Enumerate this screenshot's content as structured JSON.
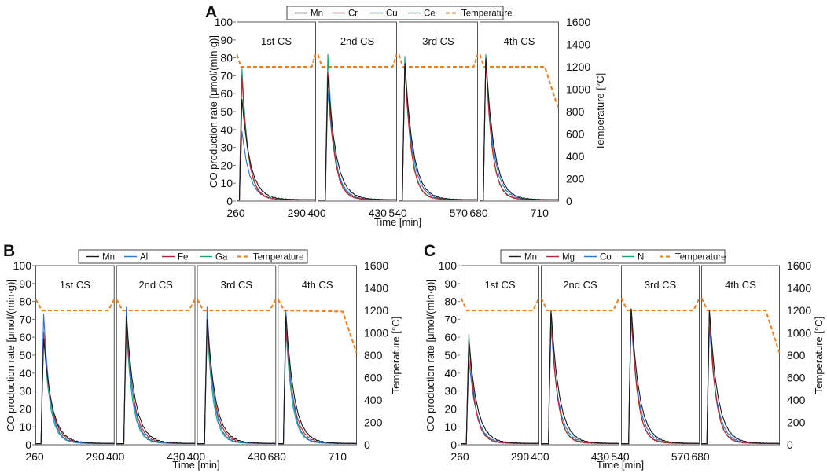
{
  "figure": {
    "colors": {
      "Mn": "#1a1a1a",
      "Cr": "#c0242a",
      "Cu": "#2f6fd1",
      "Ce": "#1aa37a",
      "Al": "#2f6fd1",
      "Fe": "#c0242a",
      "Ga": "#1aa37a",
      "Mg": "#c0242a",
      "Co": "#2f6fd1",
      "Ni": "#1aa37a",
      "Temperature": "#f07f1b"
    }
  },
  "chart_data": [
    {
      "id": "A",
      "panel_label": "A",
      "type": "line",
      "ylabel_left": "CO production rate [μmol/(min·g)]",
      "ylabel_right": "Temperature [°C]",
      "xlabel": "Time [min]",
      "ylim_left": [
        0,
        100
      ],
      "ylim_right": [
        0,
        1600
      ],
      "yticks_left": [
        "0",
        "10",
        "20",
        "30",
        "40",
        "50",
        "60",
        "70",
        "80",
        "90",
        "100"
      ],
      "yticks_right": [
        "0",
        "200",
        "400",
        "600",
        "800",
        "1000",
        "1200",
        "1400",
        "1600"
      ],
      "x_tick_labels": [
        "260",
        "290",
        "400",
        "430",
        "540",
        "570",
        "680",
        "710"
      ],
      "legend": [
        "Mn",
        "Cr",
        "Cu",
        "Ce",
        "Temperature"
      ],
      "segments": [
        {
          "label": "1st CS",
          "xlim": [
            260,
            300
          ],
          "ticks": [
            260,
            290
          ]
        },
        {
          "label": "2nd CS",
          "xlim": [
            400,
            440
          ],
          "ticks": [
            400,
            430
          ]
        },
        {
          "label": "3rd CS",
          "xlim": [
            540,
            580
          ],
          "ticks": [
            540,
            570
          ]
        },
        {
          "label": "4th CS",
          "xlim": [
            680,
            720
          ],
          "ticks": [
            680,
            710
          ]
        }
      ],
      "peaks": [
        {
          "t": 262.5,
          "Mn": 57,
          "Cr": 70,
          "Cu": 39,
          "Ce": 74
        },
        {
          "t": 405,
          "Mn": 70,
          "Cr": 72,
          "Cu": 62,
          "Ce": 82
        },
        {
          "t": 543,
          "Mn": 77,
          "Cr": 76,
          "Cu": 76,
          "Ce": 81
        },
        {
          "t": 683,
          "Mn": 80,
          "Cr": 79,
          "Cu": 79,
          "Ce": 82
        }
      ],
      "temperature": [
        [
          [
            260,
            1310
          ],
          [
            262,
            1200
          ],
          [
            298,
            1200
          ],
          [
            300,
            1310
          ]
        ],
        [
          [
            400,
            1310
          ],
          [
            402,
            1200
          ],
          [
            438,
            1200
          ],
          [
            440,
            1310
          ]
        ],
        [
          [
            540,
            1310
          ],
          [
            542,
            1200
          ],
          [
            578,
            1200
          ],
          [
            580,
            1310
          ]
        ],
        [
          [
            680,
            1310
          ],
          [
            682,
            1200
          ],
          [
            713,
            1200
          ],
          [
            720,
            820
          ]
        ]
      ]
    },
    {
      "id": "B",
      "panel_label": "B",
      "type": "line",
      "ylabel_left": "CO production rate [μmol/(min·g)]",
      "ylabel_right": "Temperature [°C]",
      "xlabel": "Time [min]",
      "ylim_left": [
        0,
        100
      ],
      "ylim_right": [
        0,
        1600
      ],
      "yticks_left": [
        "0",
        "10",
        "20",
        "30",
        "40",
        "50",
        "60",
        "70",
        "80",
        "90",
        "100"
      ],
      "yticks_right": [
        "0",
        "200",
        "400",
        "600",
        "800",
        "1000",
        "1200",
        "1400",
        "1600"
      ],
      "x_tick_labels": [
        "260",
        "290",
        "400",
        "430",
        "400",
        "430",
        "680",
        "710"
      ],
      "legend": [
        "Mn",
        "Al",
        "Fe",
        "Ga",
        "Temperature"
      ],
      "segments": [
        {
          "label": "1st CS",
          "xlim": [
            260,
            300
          ],
          "ticks": [
            260,
            290
          ]
        },
        {
          "label": "2nd CS",
          "xlim": [
            400,
            440
          ],
          "ticks": [
            400,
            430
          ]
        },
        {
          "label": "3rd CS",
          "xlim": [
            400,
            440
          ],
          "ticks": [
            400,
            430
          ]
        },
        {
          "label": "4th CS",
          "xlim": [
            680,
            720
          ],
          "ticks": [
            680,
            710
          ]
        }
      ],
      "peaks": [
        {
          "t": 264,
          "Mn": 59,
          "Al": 73,
          "Fe": 63,
          "Ga": 62
        },
        {
          "t": 405,
          "Mn": 72,
          "Al": 77,
          "Fe": 67,
          "Ga": 65
        },
        {
          "t": 405,
          "Mn": 70,
          "Al": 77,
          "Fe": 68,
          "Ga": 65
        },
        {
          "t": 684,
          "Mn": 72,
          "Al": 75,
          "Fe": 66,
          "Ga": 64
        }
      ],
      "temperature": [
        [
          [
            260,
            1300
          ],
          [
            263,
            1200
          ],
          [
            297,
            1200
          ],
          [
            300,
            1300
          ]
        ],
        [
          [
            400,
            1300
          ],
          [
            403,
            1200
          ],
          [
            437,
            1200
          ],
          [
            440,
            1300
          ]
        ],
        [
          [
            400,
            1300
          ],
          [
            403,
            1200
          ],
          [
            437,
            1200
          ],
          [
            440,
            1300
          ]
        ],
        [
          [
            680,
            1300
          ],
          [
            683,
            1200
          ],
          [
            713,
            1190
          ],
          [
            720,
            820
          ]
        ]
      ]
    },
    {
      "id": "C",
      "panel_label": "C",
      "type": "line",
      "ylabel_left": "CO production rate [μmol/(min·g)]",
      "ylabel_right": "Temperature [°C]",
      "xlabel": "Time [min]",
      "ylim_left": [
        0,
        100
      ],
      "ylim_right": [
        0,
        1600
      ],
      "yticks_left": [
        "0",
        "10",
        "20",
        "30",
        "40",
        "50",
        "60",
        "70",
        "80",
        "90",
        "100"
      ],
      "yticks_right": [
        "0",
        "200",
        "400",
        "600",
        "800",
        "1000",
        "1200",
        "1400",
        "1600"
      ],
      "x_tick_labels": [
        "260",
        "290",
        "400",
        "430",
        "540",
        "570",
        "680"
      ],
      "legend": [
        "Mn",
        "Mg",
        "Co",
        "Ni",
        "Temperature"
      ],
      "segments": [
        {
          "label": "1st CS",
          "xlim": [
            260,
            300
          ],
          "ticks": [
            260,
            290
          ]
        },
        {
          "label": "2nd CS",
          "xlim": [
            400,
            440
          ],
          "ticks": [
            400,
            430
          ]
        },
        {
          "label": "3rd CS",
          "xlim": [
            540,
            580
          ],
          "ticks": [
            540,
            570
          ]
        },
        {
          "label": "4th CS",
          "xlim": [
            680,
            720
          ],
          "ticks": [
            680
          ]
        }
      ],
      "peaks": [
        {
          "t": 264,
          "Mn": 58,
          "Mg": 58,
          "Co": 48,
          "Ni": 62
        },
        {
          "t": 405,
          "Mn": 75,
          "Mg": 74,
          "Co": 66,
          "Ni": 74
        },
        {
          "t": 545,
          "Mn": 76,
          "Mg": 76,
          "Co": 70,
          "Ni": 76
        },
        {
          "t": 684,
          "Mn": 75,
          "Mg": 75,
          "Co": 66,
          "Ni": 74
        }
      ],
      "temperature": [
        [
          [
            260,
            1310
          ],
          [
            263,
            1200
          ],
          [
            297,
            1200
          ],
          [
            300,
            1310
          ]
        ],
        [
          [
            400,
            1310
          ],
          [
            403,
            1200
          ],
          [
            437,
            1200
          ],
          [
            440,
            1310
          ]
        ],
        [
          [
            540,
            1310
          ],
          [
            543,
            1200
          ],
          [
            577,
            1200
          ],
          [
            580,
            1310
          ]
        ],
        [
          [
            680,
            1310
          ],
          [
            683,
            1200
          ],
          [
            713,
            1200
          ],
          [
            720,
            820
          ]
        ]
      ]
    }
  ]
}
